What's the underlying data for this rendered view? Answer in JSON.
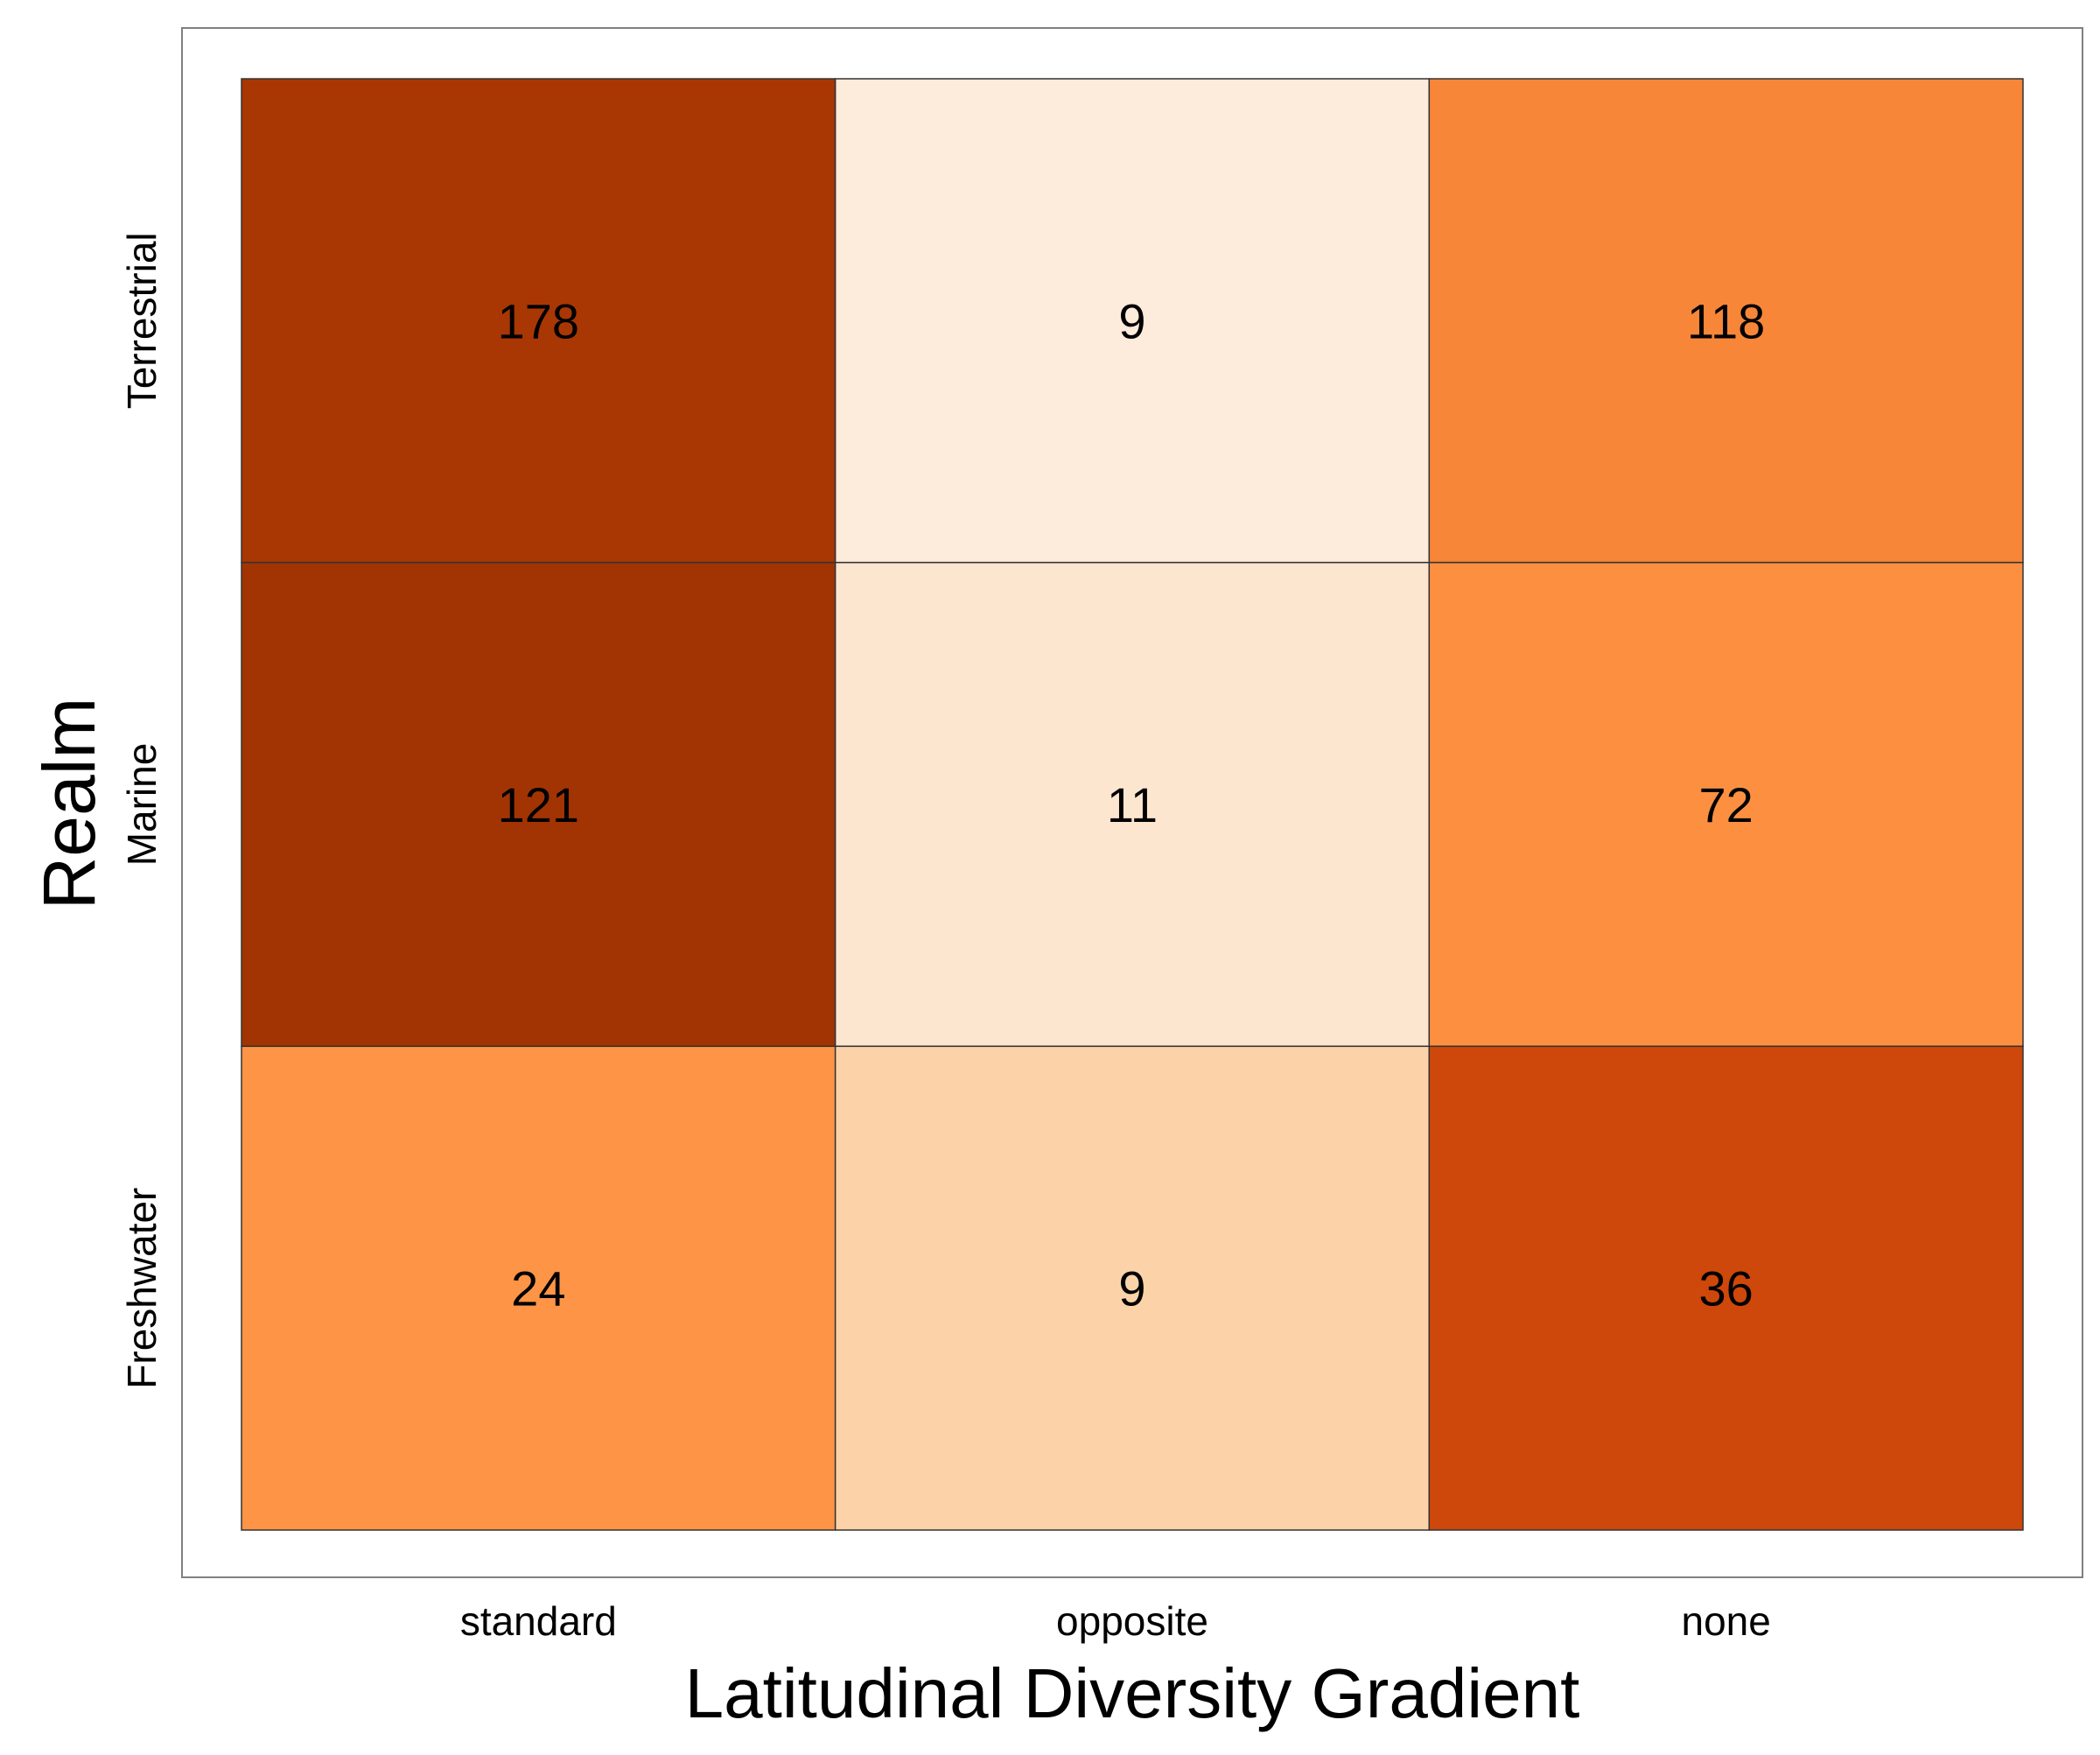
{
  "chart_data": {
    "type": "heatmap",
    "title": "",
    "xlabel": "Latitudinal Diversity Gradient",
    "ylabel": "Realm",
    "x_categories": [
      "standard",
      "opposite",
      "none"
    ],
    "y_categories": [
      "Terrestrial",
      "Marine",
      "Freshwater"
    ],
    "cells": [
      {
        "x": "standard",
        "y": "Terrestrial",
        "value": 178,
        "color": "#a93703"
      },
      {
        "x": "opposite",
        "y": "Terrestrial",
        "value": 9,
        "color": "#fdebdb"
      },
      {
        "x": "none",
        "y": "Terrestrial",
        "value": 118,
        "color": "#f78639"
      },
      {
        "x": "standard",
        "y": "Marine",
        "value": 121,
        "color": "#a23403"
      },
      {
        "x": "opposite",
        "y": "Marine",
        "value": 11,
        "color": "#fde6d0"
      },
      {
        "x": "none",
        "y": "Marine",
        "value": 72,
        "color": "#fc9040"
      },
      {
        "x": "standard",
        "y": "Freshwater",
        "value": 24,
        "color": "#fd9446"
      },
      {
        "x": "opposite",
        "y": "Freshwater",
        "value": 9,
        "color": "#fcd3a8"
      },
      {
        "x": "none",
        "y": "Freshwater",
        "value": 36,
        "color": "#ce470b"
      }
    ],
    "grid": false,
    "legend": "none"
  }
}
